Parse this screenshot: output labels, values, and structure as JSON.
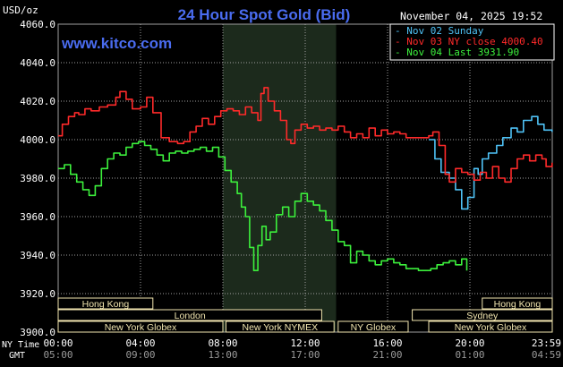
{
  "header": {
    "title": "24 Hour Spot Gold (Bid)",
    "units": "USD/oz",
    "timestamp": "November 04, 2025 19:52",
    "site": "www.kitco.com"
  },
  "colors": {
    "background": "#000000",
    "grid": "#a0a0a0",
    "highlight": "#1c2a1c",
    "nov02": "#4fc3f7",
    "nov03": "#ff2a2a",
    "nov04": "#3cf03c",
    "title": "#4a6cf0",
    "axis_text": "#ffffff",
    "session_fill": "#000000",
    "session_text": "#f2e6b0",
    "session_border": "#f2e6b0"
  },
  "axis_labels": {
    "ny_time": "NY Time",
    "gmt": "GMT"
  },
  "chart_data": {
    "type": "line",
    "title": "24 Hour Spot Gold (Bid)",
    "ylabel": "USD/oz",
    "ylim": [
      3900,
      4060
    ],
    "xlim": [
      0,
      24
    ],
    "grid": true,
    "legend_position": "top-right",
    "highlight_hours": [
      8,
      13.5
    ],
    "y_ticks": [
      "3900.0",
      "3920.0",
      "3940.0",
      "3960.0",
      "3980.0",
      "4000.0",
      "4020.0",
      "4040.0",
      "4060.0"
    ],
    "x_ticks": [
      {
        "ny": "00:00",
        "gmt": "05:00"
      },
      {
        "ny": "04:00",
        "gmt": "09:00"
      },
      {
        "ny": "08:00",
        "gmt": "13:00"
      },
      {
        "ny": "12:00",
        "gmt": "17:00"
      },
      {
        "ny": "16:00",
        "gmt": "21:00"
      },
      {
        "ny": "20:00",
        "gmt": "01:00"
      },
      {
        "ny": "23:59",
        "gmt": "04:59"
      }
    ],
    "series": [
      {
        "name": "Nov 02 Sunday",
        "color": "#4fc3f7",
        "x": [
          18,
          18.3,
          18.6,
          19,
          19.3,
          19.6,
          19.9,
          20.2,
          20.4,
          20.6,
          20.9,
          21.3,
          21.6,
          22,
          22.3,
          22.6,
          23,
          23.3,
          23.6,
          23.99
        ],
        "y": [
          4000,
          3990,
          3983,
          3980,
          3974,
          3964,
          3970,
          3985,
          3982,
          3990,
          3993,
          3997,
          4001,
          4006,
          4004,
          4010,
          4012,
          4008,
          4005,
          4004
        ]
      },
      {
        "name": "Nov 03 NY close",
        "value_label": "4000.40",
        "color": "#ff2a2a",
        "x": [
          0,
          0.2,
          0.5,
          0.8,
          1.0,
          1.3,
          1.6,
          2.0,
          2.4,
          2.8,
          3.0,
          3.3,
          3.6,
          4.0,
          4.3,
          4.6,
          5.0,
          5.4,
          5.8,
          6.1,
          6.4,
          6.7,
          7.0,
          7.3,
          7.6,
          7.9,
          8.2,
          8.5,
          8.8,
          9.1,
          9.4,
          9.7,
          9.85,
          10.0,
          10.2,
          10.5,
          10.8,
          11.1,
          11.3,
          11.5,
          11.8,
          12.1,
          12.4,
          12.7,
          13.0,
          13.3,
          13.6,
          13.9,
          14.2,
          14.5,
          14.8,
          15.1,
          15.4,
          15.7,
          16.0,
          16.3,
          16.6,
          16.9,
          17.2,
          17.5,
          17.8,
          18.0,
          18.2,
          18.5,
          18.8,
          19.0,
          19.3,
          19.6,
          19.9,
          20.2,
          20.5,
          20.8,
          21.1,
          21.4,
          21.7,
          22.0,
          22.3,
          22.6,
          22.9,
          23.2,
          23.5,
          23.7,
          23.99
        ],
        "y": [
          4002,
          4008,
          4012,
          4014,
          4013,
          4016,
          4015,
          4017,
          4018,
          4022,
          4025,
          4021,
          4016,
          4017,
          4022,
          4014,
          4001,
          3999,
          3998,
          3999,
          4004,
          4007,
          4011,
          4008,
          4012,
          4015,
          4016,
          4015,
          4013,
          4017,
          4014,
          4010,
          4024,
          4027,
          4020,
          4015,
          4010,
          4000,
          3998,
          4005,
          4008,
          4006,
          4007,
          4005,
          4006,
          4005,
          4007,
          4004,
          4001,
          4003,
          4001,
          4006,
          4002,
          4005,
          4003,
          4004,
          4003,
          4001,
          4001,
          4001,
          4001,
          4002,
          4004,
          3997,
          3982,
          3978,
          3985,
          3983,
          3982,
          3979,
          3983,
          3980,
          3986,
          3980,
          3978,
          3985,
          3990,
          3992,
          3989,
          3992,
          3990,
          3986,
          3988
        ]
      },
      {
        "name": "Nov 04 Last",
        "value_label": "3931.90",
        "color": "#3cf03c",
        "x": [
          0,
          0.3,
          0.6,
          0.9,
          1.2,
          1.5,
          1.8,
          2.1,
          2.4,
          2.7,
          3.0,
          3.3,
          3.6,
          3.9,
          4.2,
          4.5,
          4.8,
          5.1,
          5.4,
          5.7,
          6.0,
          6.3,
          6.6,
          6.9,
          7.2,
          7.5,
          7.8,
          8.1,
          8.4,
          8.7,
          8.9,
          9.1,
          9.3,
          9.5,
          9.7,
          9.9,
          10.1,
          10.3,
          10.6,
          10.9,
          11.2,
          11.5,
          11.8,
          12.1,
          12.4,
          12.7,
          13.0,
          13.3,
          13.6,
          13.9,
          14.2,
          14.5,
          14.8,
          15.1,
          15.4,
          15.7,
          16.0,
          16.3,
          16.6,
          16.9,
          17.2,
          17.5,
          17.8,
          18.1,
          18.4,
          18.7,
          19.0,
          19.3,
          19.6,
          19.85
        ],
        "y": [
          3985,
          3987,
          3982,
          3978,
          3974,
          3971,
          3976,
          3985,
          3990,
          3993,
          3992,
          3996,
          3998,
          3999,
          3997,
          3995,
          3992,
          3989,
          3993,
          3994,
          3993,
          3994,
          3995,
          3996,
          3994,
          3996,
          3991,
          3984,
          3978,
          3972,
          3965,
          3960,
          3944,
          3932,
          3945,
          3955,
          3948,
          3952,
          3961,
          3965,
          3960,
          3968,
          3972,
          3968,
          3966,
          3963,
          3958,
          3953,
          3947,
          3945,
          3936,
          3942,
          3940,
          3937,
          3935,
          3937,
          3938,
          3936,
          3935,
          3933,
          3933,
          3932,
          3932,
          3933,
          3935,
          3936,
          3937,
          3935,
          3938,
          3932
        ]
      }
    ],
    "sessions": [
      {
        "label": "Hong Kong",
        "start": 0,
        "end": 4.6,
        "row": 0
      },
      {
        "label": "London",
        "start": 0,
        "end": 12.8,
        "row": 1
      },
      {
        "label": "New York Globex",
        "start": 0,
        "end": 8,
        "row": 2
      },
      {
        "label": "New York NYMEX",
        "start": 8.15,
        "end": 13.4,
        "row": 2
      },
      {
        "label": "NY Globex",
        "start": 13.6,
        "end": 17,
        "row": 2
      },
      {
        "label": "Hong Kong",
        "start": 20.6,
        "end": 24,
        "row": 0
      },
      {
        "label": "Sydney",
        "start": 17.2,
        "end": 24,
        "row": 1
      },
      {
        "label": "New York Globex",
        "start": 18,
        "end": 24,
        "row": 2
      }
    ]
  }
}
